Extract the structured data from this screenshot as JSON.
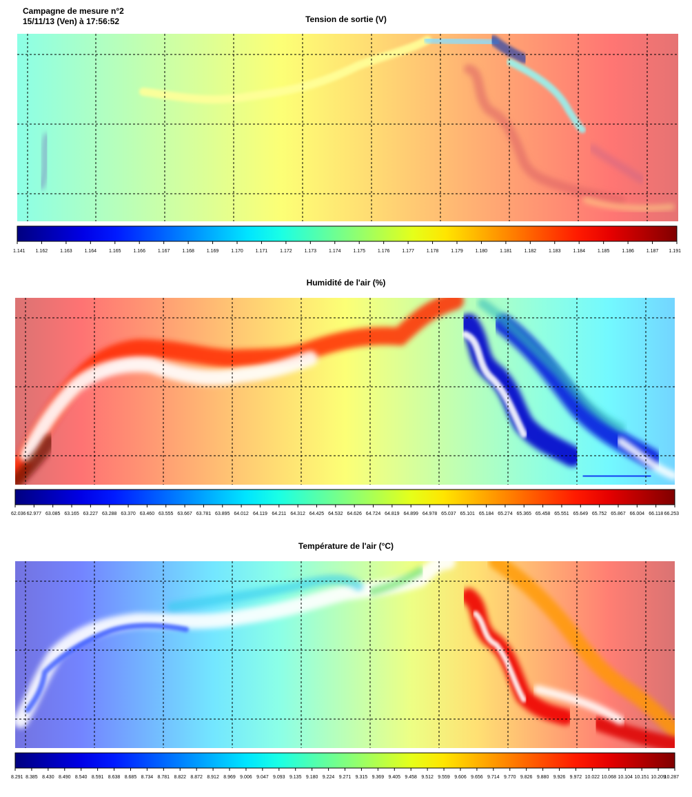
{
  "header": {
    "line1": "Campagne de mesure n°2",
    "line2": "15/11/13 (Ven) à 17:56:52"
  },
  "chart_data": [
    {
      "type": "heatmap",
      "title": "Tension de sortie (V)",
      "colormap": "jet",
      "range": [
        1.141,
        1.191
      ],
      "grid": true,
      "gradient": {
        "left": 1.162,
        "right": 1.187
      },
      "scale_ticks": [
        "1.141",
        "1.162",
        "1.163",
        "1.164",
        "1.165",
        "1.166",
        "1.167",
        "1.168",
        "1.169",
        "1.170",
        "1.171",
        "1.172",
        "1.173",
        "1.174",
        "1.175",
        "1.176",
        "1.177",
        "1.178",
        "1.179",
        "1.180",
        "1.181",
        "1.182",
        "1.183",
        "1.184",
        "1.185",
        "1.186",
        "1.187",
        "1.191"
      ]
    },
    {
      "type": "heatmap",
      "title": "Humidité de l'air (%)",
      "colormap": "jet",
      "range": [
        62.036,
        66.253
      ],
      "grid": true,
      "gradient": {
        "left": 66.0,
        "right": 63.3
      },
      "scale_ticks": [
        "62.036",
        "62.977",
        "63.085",
        "63.165",
        "63.227",
        "63.288",
        "63.370",
        "63.460",
        "63.555",
        "63.667",
        "63.781",
        "63.895",
        "64.012",
        "64.119",
        "64.211",
        "64.312",
        "64.425",
        "64.532",
        "64.626",
        "64.724",
        "64.819",
        "64.899",
        "64.978",
        "65.037",
        "65.101",
        "65.184",
        "65.274",
        "65.365",
        "65.458",
        "65.551",
        "65.649",
        "65.752",
        "65.867",
        "66.004",
        "66.118",
        "66.253"
      ]
    },
    {
      "type": "heatmap",
      "title": "Température de l'air (°C)",
      "colormap": "jet",
      "range": [
        8.291,
        10.287
      ],
      "grid": true,
      "gradient": {
        "left": 8.43,
        "right": 10.17
      },
      "scale_ticks": [
        "8.291",
        "8.385",
        "8.430",
        "8.490",
        "8.540",
        "8.591",
        "8.638",
        "8.685",
        "8.734",
        "8.781",
        "8.822",
        "8.872",
        "8.912",
        "8.969",
        "9.006",
        "9.047",
        "9.093",
        "9.135",
        "9.180",
        "9.224",
        "9.271",
        "9.315",
        "9.369",
        "9.405",
        "9.458",
        "9.512",
        "9.559",
        "9.606",
        "9.656",
        "9.714",
        "9.770",
        "9.826",
        "9.880",
        "9.926",
        "9.972",
        "10.022",
        "10.068",
        "10.104",
        "10.151",
        "10.209",
        "10.287"
      ]
    }
  ]
}
